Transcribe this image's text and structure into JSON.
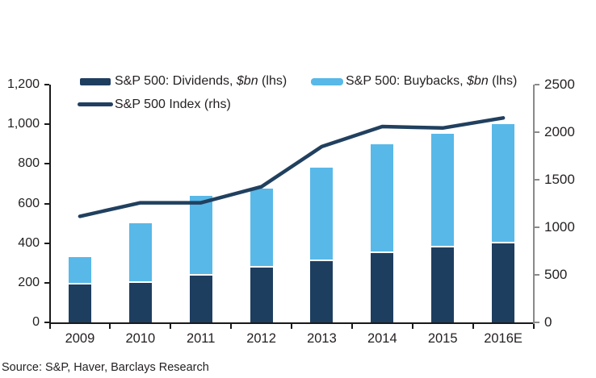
{
  "source": "Source: S&P, Haver, Barclays Research",
  "colors": {
    "dividends_bar": "#1e3e60",
    "buybacks_bar": "#58b8e8",
    "index_line": "#21405f",
    "axis_left": "#1a1a1a",
    "axis_right": "#8a8a8a",
    "text": "#231f20",
    "segment_gap": "#ffffff"
  },
  "legend": {
    "dividends": {
      "prefix": "S&P 500: Dividends, ",
      "unit": "$bn",
      "suffix": " (lhs)"
    },
    "buybacks": {
      "prefix": "S&P 500: Buybacks, ",
      "unit": "$bn",
      "suffix": " (lhs)"
    },
    "index": {
      "label": "S&P 500 Index (rhs)"
    }
  },
  "chart_data": {
    "type": "bar",
    "subtype": "stacked-bars-with-line",
    "title": "",
    "categories": [
      "2009",
      "2010",
      "2011",
      "2012",
      "2013",
      "2014",
      "2015",
      "2016E"
    ],
    "series": [
      {
        "name": "S&P 500: Dividends, $bn (lhs)",
        "type": "bar",
        "stack": "total-payout",
        "axis": "left",
        "values": [
          190,
          200,
          235,
          275,
          310,
          350,
          378,
          400
        ]
      },
      {
        "name": "S&P 500: Buybacks, $bn (lhs)",
        "type": "bar",
        "stack": "total-payout",
        "axis": "left",
        "values": [
          140,
          300,
          405,
          400,
          470,
          550,
          572,
          600
        ]
      },
      {
        "name": "S&P 500 Index (rhs)",
        "type": "line",
        "axis": "right",
        "values": [
          1115,
          1258,
          1258,
          1426,
          1848,
          2059,
          2044,
          2150
        ]
      }
    ],
    "left_axis": {
      "min": 0,
      "max": 1200,
      "ticks": [
        {
          "label": "1,200",
          "value": 1200
        },
        {
          "label": "1,000",
          "value": 1000
        },
        {
          "label": "800",
          "value": 800
        },
        {
          "label": "600",
          "value": 600
        },
        {
          "label": "400",
          "value": 400
        },
        {
          "label": "200",
          "value": 200
        },
        {
          "label": "0",
          "value": 0
        }
      ]
    },
    "right_axis": {
      "min": 0,
      "max": 2500,
      "ticks": [
        {
          "label": "2500",
          "value": 2500
        },
        {
          "label": "2000",
          "value": 2000
        },
        {
          "label": "1500",
          "value": 1500
        },
        {
          "label": "1000",
          "value": 1000
        },
        {
          "label": "500",
          "value": 500
        },
        {
          "label": "0",
          "value": 0
        }
      ]
    },
    "grid": false,
    "legend_position": "top"
  }
}
